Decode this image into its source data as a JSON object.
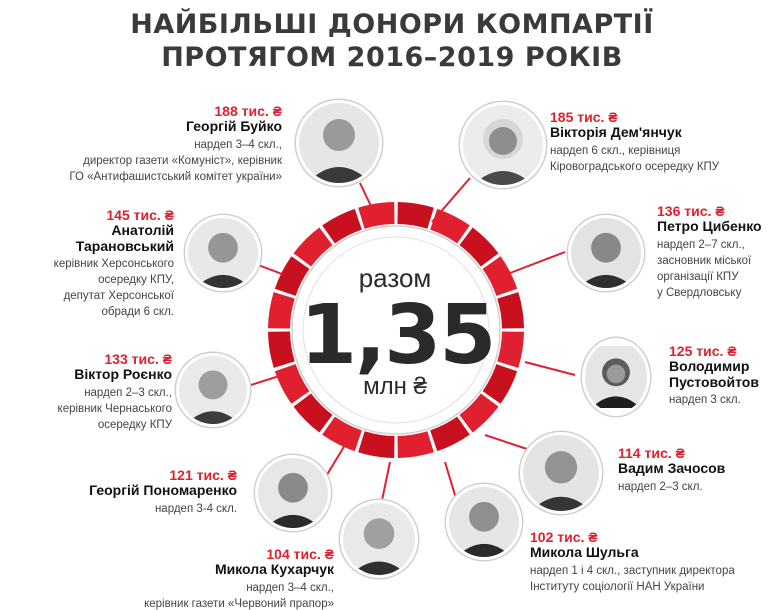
{
  "title": {
    "line1": "НАЙБІЛЬШІ ДОНОРИ КОМПАРТІЇ",
    "line2": "ПРОТЯГОМ 2016–2019 РОКІВ"
  },
  "center": {
    "label": "разом",
    "value": "1,35",
    "unit": "млн ₴"
  },
  "donors": [
    {
      "amount": "188 тис. ₴",
      "name": "Георгій Буйко",
      "desc": "нардеп 3–4 скл.,\nдиректор газети «Комуніст», керівник\nГО «Антифашистський комітет україни»"
    },
    {
      "amount": "185 тис. ₴",
      "name": "Вікторія Дем'янчук",
      "desc": "нардеп 6 скл., керівниця\nКіровоградського осередку КПУ"
    },
    {
      "amount": "145 тис. ₴",
      "name": "Анатолій\nТарановський",
      "desc": "керівник Херсонського\nосередку КПУ,\nдепутат Херсонської\nобрaди 6 скл."
    },
    {
      "amount": "136 тис. ₴",
      "name": "Петро Цибенко",
      "desc": "нардеп 2–7 скл.,\nзасновник міської\nорганізації КПУ\nу Свердловську"
    },
    {
      "amount": "133 тис. ₴",
      "name": "Віктор Роєнко",
      "desc": "нардеп 2–3 скл.,\nкерівник Чернаського\nосередку КПУ"
    },
    {
      "amount": "125 тис. ₴",
      "name": "Володимир\nПустовойтов",
      "desc": "нардеп 3 скл."
    },
    {
      "amount": "121 тис. ₴",
      "name": "Георгій Пономаренко",
      "desc": "нардеп 3-4 скл."
    },
    {
      "amount": "114 тис. ₴",
      "name": "Вадим Зачосов",
      "desc": "нардеп 2–3 скл."
    },
    {
      "amount": "104 тис. ₴",
      "name": "Микола Кухарчук",
      "desc": "нардеп 3–4 скл.,\nкерівник газети «Червоний прапор»"
    },
    {
      "amount": "102 тис. ₴",
      "name": "Микола Шульга",
      "desc": "нардеп 1 і 4 скл., заступник директора\nІнституту соціології НАН України"
    }
  ],
  "colors": {
    "accent": "#e0202e",
    "ring_dark": "#c8101e",
    "title": "#3a3a3a"
  }
}
